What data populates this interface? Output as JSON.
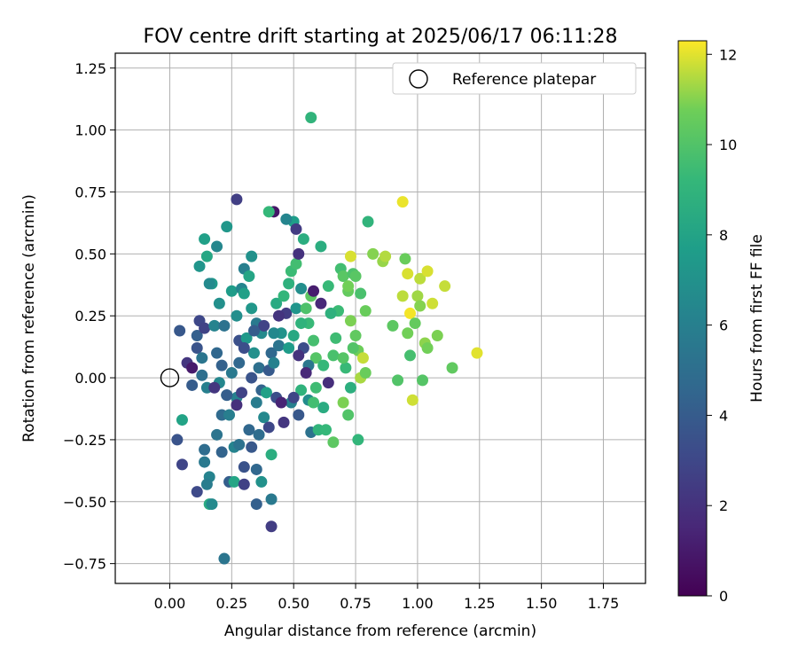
{
  "chart_data": {
    "type": "scatter",
    "title": "FOV centre drift starting at 2025/06/17 06:11:28",
    "xlabel": "Angular distance from reference (arcmin)",
    "ylabel": "Rotation from reference (arcmin)",
    "xlim": [
      -0.22,
      1.92
    ],
    "ylim": [
      -0.83,
      1.31
    ],
    "x_ticks": [
      0.0,
      0.25,
      0.5,
      0.75,
      1.0,
      1.25,
      1.5,
      1.75
    ],
    "x_tick_labels": [
      "0.00",
      "0.25",
      "0.50",
      "0.75",
      "1.00",
      "1.25",
      "1.50",
      "1.75"
    ],
    "y_ticks": [
      -0.75,
      -0.5,
      -0.25,
      0.0,
      0.25,
      0.5,
      0.75,
      1.0,
      1.25
    ],
    "y_tick_labels": [
      "−0.75",
      "−0.50",
      "−0.25",
      "0.00",
      "0.25",
      "0.50",
      "0.75",
      "1.00",
      "1.25"
    ],
    "grid": true,
    "legend": {
      "position": "top-right",
      "entries": [
        "Reference platepar"
      ]
    },
    "reference_point": {
      "x": 0.0,
      "y": 0.0,
      "label": "Reference platepar"
    },
    "colorbar": {
      "label": "Hours from first FF file",
      "range": [
        0,
        12.3
      ],
      "ticks": [
        0,
        2,
        4,
        6,
        8,
        10,
        12
      ],
      "tick_labels": [
        "0",
        "2",
        "4",
        "6",
        "8",
        "10",
        "12"
      ],
      "colormap": "viridis"
    },
    "points": [
      [
        0.04,
        0.19,
        3.8
      ],
      [
        0.07,
        0.06,
        2.2
      ],
      [
        0.09,
        0.04,
        1.0
      ],
      [
        0.09,
        -0.03,
        4.0
      ],
      [
        0.11,
        0.12,
        3.6
      ],
      [
        0.11,
        0.17,
        4.2
      ],
      [
        0.12,
        0.23,
        3.0
      ],
      [
        0.13,
        0.01,
        5.0
      ],
      [
        0.13,
        0.08,
        5.4
      ],
      [
        0.14,
        0.2,
        2.8
      ],
      [
        0.15,
        -0.04,
        6.0
      ],
      [
        0.12,
        0.45,
        7.2
      ],
      [
        0.14,
        0.56,
        7.8
      ],
      [
        0.15,
        0.49,
        8.2
      ],
      [
        0.17,
        0.38,
        7.4
      ],
      [
        0.18,
        0.21,
        6.2
      ],
      [
        0.16,
        0.38,
        6.6
      ],
      [
        0.2,
        0.3,
        6.9
      ],
      [
        0.19,
        0.53,
        6.4
      ],
      [
        0.23,
        0.61,
        7.3
      ],
      [
        0.22,
        0.21,
        5.2
      ],
      [
        0.19,
        0.1,
        4.6
      ],
      [
        0.21,
        0.05,
        4.3
      ],
      [
        0.25,
        0.02,
        5.6
      ],
      [
        0.2,
        -0.02,
        6.4
      ],
      [
        0.23,
        -0.07,
        7.0
      ],
      [
        0.21,
        -0.15,
        4.8
      ],
      [
        0.24,
        -0.15,
        5.9
      ],
      [
        0.27,
        -0.08,
        6.1
      ],
      [
        0.28,
        0.15,
        3.4
      ],
      [
        0.25,
        0.35,
        7.6
      ],
      [
        0.27,
        0.25,
        6.8
      ],
      [
        0.29,
        0.36,
        6.3
      ],
      [
        0.3,
        0.44,
        6.0
      ],
      [
        0.33,
        0.49,
        7.0
      ],
      [
        0.32,
        0.41,
        8.1
      ],
      [
        0.3,
        0.34,
        7.8
      ],
      [
        0.33,
        0.28,
        7.3
      ],
      [
        0.35,
        0.22,
        5.7
      ],
      [
        0.37,
        0.18,
        6.6
      ],
      [
        0.31,
        0.16,
        7.4
      ],
      [
        0.34,
        0.1,
        6.9
      ],
      [
        0.36,
        0.04,
        5.1
      ],
      [
        0.37,
        -0.05,
        4.4
      ],
      [
        0.35,
        -0.1,
        5.8
      ],
      [
        0.38,
        -0.16,
        6.5
      ],
      [
        0.39,
        -0.06,
        7.9
      ],
      [
        0.41,
        0.1,
        4.7
      ],
      [
        0.4,
        0.03,
        3.9
      ],
      [
        0.42,
        0.06,
        6.1
      ],
      [
        0.44,
        0.13,
        5.3
      ],
      [
        0.45,
        0.18,
        7.1
      ],
      [
        0.47,
        0.26,
        2.5
      ],
      [
        0.43,
        0.3,
        8.4
      ],
      [
        0.46,
        0.33,
        9.1
      ],
      [
        0.49,
        0.43,
        9.4
      ],
      [
        0.48,
        0.38,
        8.8
      ],
      [
        0.51,
        0.46,
        9.6
      ],
      [
        0.52,
        0.5,
        2.0
      ],
      [
        0.5,
        0.63,
        7.7
      ],
      [
        0.54,
        0.56,
        8.6
      ],
      [
        0.51,
        0.28,
        7.2
      ],
      [
        0.53,
        0.36,
        6.8
      ],
      [
        0.55,
        0.28,
        9.9
      ],
      [
        0.56,
        0.22,
        9.3
      ],
      [
        0.57,
        0.33,
        10.3
      ],
      [
        0.58,
        0.15,
        9.7
      ],
      [
        0.59,
        0.08,
        10.1
      ],
      [
        0.54,
        0.12,
        3.3
      ],
      [
        0.56,
        0.05,
        5.5
      ],
      [
        0.53,
        -0.05,
        8.9
      ],
      [
        0.56,
        -0.09,
        6.7
      ],
      [
        0.57,
        -0.22,
        5.2
      ],
      [
        0.6,
        -0.21,
        9.0
      ],
      [
        0.59,
        -0.04,
        9.5
      ],
      [
        0.62,
        -0.12,
        8.5
      ],
      [
        0.63,
        -0.21,
        9.2
      ],
      [
        0.64,
        -0.02,
        1.8
      ],
      [
        0.66,
        0.09,
        9.8
      ],
      [
        0.68,
        0.27,
        9.4
      ],
      [
        0.69,
        0.44,
        9.6
      ],
      [
        0.7,
        0.41,
        10.2
      ],
      [
        0.72,
        0.35,
        10.5
      ],
      [
        0.74,
        0.42,
        9.9
      ],
      [
        0.73,
        0.23,
        10.9
      ],
      [
        0.75,
        0.17,
        10.4
      ],
      [
        0.76,
        0.11,
        10.7
      ],
      [
        0.71,
        0.04,
        9.3
      ],
      [
        0.73,
        -0.04,
        8.7
      ],
      [
        0.72,
        -0.15,
        10.0
      ],
      [
        0.76,
        -0.25,
        9.1
      ],
      [
        0.77,
        0.0,
        11.4
      ],
      [
        0.78,
        0.08,
        11.7
      ],
      [
        0.79,
        0.02,
        10.6
      ],
      [
        0.8,
        0.63,
        9.0
      ],
      [
        0.82,
        0.5,
        11.0
      ],
      [
        0.86,
        0.47,
        11.2
      ],
      [
        0.87,
        0.49,
        11.5
      ],
      [
        0.9,
        0.21,
        10.3
      ],
      [
        0.92,
        -0.01,
        10.0
      ],
      [
        0.94,
        0.71,
        12.1
      ],
      [
        0.94,
        0.33,
        11.6
      ],
      [
        0.95,
        0.48,
        10.6
      ],
      [
        0.96,
        0.42,
        11.9
      ],
      [
        0.96,
        0.18,
        10.8
      ],
      [
        0.97,
        0.09,
        9.7
      ],
      [
        0.97,
        0.26,
        12.2
      ],
      [
        0.98,
        -0.09,
        11.8
      ],
      [
        0.99,
        0.22,
        10.5
      ],
      [
        1.0,
        0.33,
        11.3
      ],
      [
        1.01,
        0.29,
        11.0
      ],
      [
        1.01,
        0.4,
        11.6
      ],
      [
        1.02,
        -0.01,
        10.1
      ],
      [
        1.03,
        0.14,
        11.1
      ],
      [
        1.04,
        0.12,
        10.8
      ],
      [
        1.04,
        0.43,
        11.9
      ],
      [
        1.06,
        0.3,
        11.8
      ],
      [
        1.08,
        0.17,
        10.9
      ],
      [
        1.11,
        0.37,
        11.7
      ],
      [
        1.14,
        0.04,
        10.4
      ],
      [
        1.24,
        0.1,
        12.0
      ],
      [
        0.57,
        1.05,
        9.0
      ],
      [
        0.42,
        0.67,
        0.8
      ],
      [
        0.47,
        0.64,
        6.3
      ],
      [
        0.51,
        0.6,
        2.4
      ],
      [
        0.27,
        0.72,
        2.6
      ],
      [
        0.4,
        0.67,
        9.2
      ],
      [
        0.61,
        0.53,
        8.6
      ],
      [
        0.05,
        -0.17,
        8.0
      ],
      [
        0.03,
        -0.25,
        3.6
      ],
      [
        0.05,
        -0.35,
        2.9
      ],
      [
        0.11,
        -0.46,
        3.1
      ],
      [
        0.14,
        -0.29,
        4.9
      ],
      [
        0.14,
        -0.34,
        5.6
      ],
      [
        0.16,
        -0.4,
        6.2
      ],
      [
        0.15,
        -0.43,
        5.8
      ],
      [
        0.16,
        -0.51,
        8.4
      ],
      [
        0.17,
        -0.51,
        6.6
      ],
      [
        0.19,
        -0.23,
        5.3
      ],
      [
        0.21,
        -0.3,
        4.4
      ],
      [
        0.22,
        -0.73,
        5.4
      ],
      [
        0.24,
        -0.42,
        4.1
      ],
      [
        0.26,
        -0.42,
        8.1
      ],
      [
        0.26,
        -0.28,
        6.2
      ],
      [
        0.28,
        -0.27,
        5.2
      ],
      [
        0.3,
        -0.36,
        3.5
      ],
      [
        0.3,
        -0.43,
        2.7
      ],
      [
        0.33,
        -0.28,
        3.8
      ],
      [
        0.35,
        -0.37,
        4.6
      ],
      [
        0.35,
        -0.51,
        4.2
      ],
      [
        0.37,
        -0.42,
        7.0
      ],
      [
        0.41,
        -0.49,
        5.6
      ],
      [
        0.41,
        -0.6,
        2.5
      ],
      [
        0.41,
        -0.31,
        8.6
      ],
      [
        0.46,
        -0.18,
        2.2
      ],
      [
        0.49,
        -0.1,
        6.0
      ],
      [
        0.52,
        -0.15,
        3.8
      ],
      [
        0.32,
        -0.21,
        4.6
      ],
      [
        0.36,
        -0.23,
        4.9
      ],
      [
        0.4,
        -0.2,
        3.0
      ],
      [
        0.27,
        -0.11,
        1.9
      ],
      [
        0.29,
        -0.06,
        2.8
      ],
      [
        0.33,
        0.0,
        3.6
      ],
      [
        0.23,
        -0.07,
        4.1
      ],
      [
        0.18,
        -0.04,
        2.2
      ],
      [
        0.43,
        -0.08,
        3.3
      ],
      [
        0.45,
        -0.1,
        1.4
      ],
      [
        0.5,
        -0.08,
        2.9
      ],
      [
        0.52,
        0.09,
        2.0
      ],
      [
        0.55,
        0.02,
        1.6
      ],
      [
        0.58,
        0.35,
        1.1
      ],
      [
        0.61,
        0.3,
        1.6
      ],
      [
        0.44,
        0.25,
        2.1
      ],
      [
        0.38,
        0.21,
        2.8
      ],
      [
        0.34,
        0.19,
        4.0
      ],
      [
        0.3,
        0.12,
        3.3
      ],
      [
        0.28,
        0.06,
        4.6
      ],
      [
        0.42,
        0.18,
        6.5
      ],
      [
        0.48,
        0.12,
        7.6
      ],
      [
        0.5,
        0.17,
        8.3
      ],
      [
        0.53,
        0.22,
        8.9
      ],
      [
        0.64,
        0.37,
        9.3
      ],
      [
        0.65,
        0.26,
        8.8
      ],
      [
        0.67,
        0.16,
        9.5
      ],
      [
        0.7,
        0.08,
        10.1
      ],
      [
        0.72,
        0.37,
        10.8
      ],
      [
        0.73,
        0.49,
        11.9
      ],
      [
        0.75,
        0.41,
        10.2
      ],
      [
        0.77,
        0.34,
        9.8
      ],
      [
        0.79,
        0.27,
        10.6
      ],
      [
        0.74,
        0.12,
        10.0
      ],
      [
        0.62,
        0.05,
        9.2
      ],
      [
        0.58,
        -0.1,
        9.6
      ],
      [
        0.66,
        -0.26,
        10.3
      ],
      [
        0.7,
        -0.1,
        10.9
      ]
    ]
  }
}
